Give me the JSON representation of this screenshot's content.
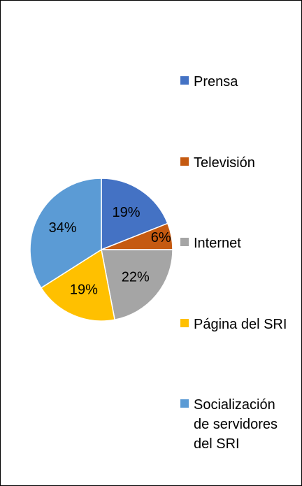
{
  "chart_data": {
    "type": "pie",
    "categories": [
      "Prensa",
      "Televisión",
      "Internet",
      "Página del SRI",
      "Socialización de servidores del SRI"
    ],
    "values": [
      19,
      6,
      22,
      19,
      34
    ],
    "value_labels": [
      "19%",
      "6%",
      "22%",
      "19%",
      "34%"
    ],
    "colors": [
      "#4472c4",
      "#c55a11",
      "#a5a5a5",
      "#ffc000",
      "#5b9bd5"
    ],
    "legend": "right"
  }
}
